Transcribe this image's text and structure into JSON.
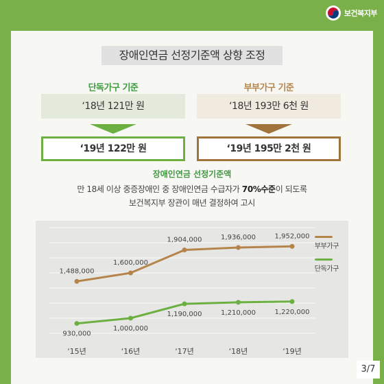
{
  "header": {
    "logo_text": "보건복지부",
    "logo_icon": "taegeuk-emblem-icon"
  },
  "title": "장애인연금 선정기준액 상향 조정",
  "single": {
    "label": "단독가구 기준",
    "prev": "‘18년 121만 원",
    "current": "‘19년 122만 원",
    "color": "#3f9a3f",
    "prev_bg": "#e3eadc",
    "border": "#6bb041"
  },
  "couple": {
    "label": "부부가구 기준",
    "prev": "‘18년 193만 6천 원",
    "current": "‘19년 195만 2천 원",
    "color": "#b5844a",
    "prev_bg": "#f1ebdf",
    "border": "#a0733a"
  },
  "section": {
    "title": "장애인연금 선정기준액",
    "desc_line1_prefix": "만 18세 이상 중증장애인 중 장애인연금 수급자가 ",
    "desc_line1_bold": "70%수준",
    "desc_line1_suffix": "이 되도록",
    "desc_line2": "보건복지부 장관이 매년 결정하여 고시"
  },
  "chart_data": {
    "type": "line",
    "categories": [
      "‘15년",
      "‘16년",
      "‘17년",
      "‘18년",
      "‘19년"
    ],
    "series": [
      {
        "name": "부부가구",
        "values": [
          1488000,
          1600000,
          1904000,
          1936000,
          1952000
        ],
        "labels": [
          "1,488,000",
          "1,600,000",
          "1,904,000",
          "1,936,000",
          "1,952,000"
        ],
        "color": "#b5844a"
      },
      {
        "name": "단독가구",
        "values": [
          930000,
          1000000,
          1190000,
          1210000,
          1220000
        ],
        "labels": [
          "930,000",
          "1,000,000",
          "1,190,000",
          "1,210,000",
          "1,220,000"
        ],
        "color": "#6bb041"
      }
    ],
    "grid": true,
    "legend": "right"
  },
  "page": "3/7"
}
